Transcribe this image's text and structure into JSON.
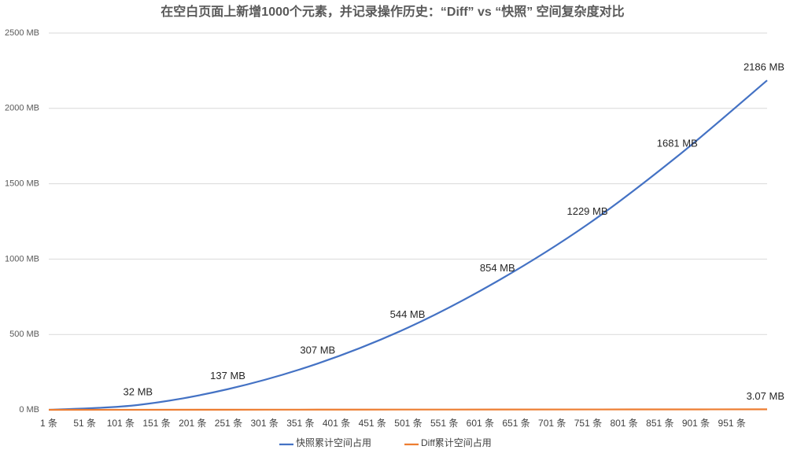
{
  "chart_data": {
    "type": "line",
    "title": "在空白页面上新增1000个元素，并记录操作历史：“Diff” vs “快照” 空间复杂度对比",
    "x": [
      1,
      125,
      250,
      375,
      500,
      625,
      750,
      875,
      1000
    ],
    "xlim": [
      1,
      1000
    ],
    "xticks": [
      {
        "value": 1,
        "label": "1 条"
      },
      {
        "value": 51,
        "label": "51 条"
      },
      {
        "value": 101,
        "label": "101 条"
      },
      {
        "value": 151,
        "label": "151 条"
      },
      {
        "value": 201,
        "label": "201 条"
      },
      {
        "value": 251,
        "label": "251 条"
      },
      {
        "value": 301,
        "label": "301 条"
      },
      {
        "value": 351,
        "label": "351 条"
      },
      {
        "value": 401,
        "label": "401 条"
      },
      {
        "value": 451,
        "label": "451 条"
      },
      {
        "value": 501,
        "label": "501 条"
      },
      {
        "value": 551,
        "label": "551 条"
      },
      {
        "value": 601,
        "label": "601 条"
      },
      {
        "value": 651,
        "label": "651 条"
      },
      {
        "value": 701,
        "label": "701 条"
      },
      {
        "value": 751,
        "label": "751 条"
      },
      {
        "value": 801,
        "label": "801 条"
      },
      {
        "value": 851,
        "label": "851 条"
      },
      {
        "value": 901,
        "label": "901 条"
      },
      {
        "value": 951,
        "label": "951 条"
      }
    ],
    "ylim": [
      0,
      2500
    ],
    "yticks": [
      {
        "value": 0,
        "label": "0 MB"
      },
      {
        "value": 500,
        "label": "500 MB"
      },
      {
        "value": 1000,
        "label": "1000 MB"
      },
      {
        "value": 1500,
        "label": "1500 MB"
      },
      {
        "value": 2000,
        "label": "2000 MB"
      },
      {
        "value": 2500,
        "label": "2500 MB"
      }
    ],
    "grid": true,
    "legend": "bottom",
    "series": [
      {
        "name": "快照累计空间占用",
        "color": "#4472c4",
        "values": [
          0,
          32,
          137,
          307,
          544,
          854,
          1229,
          1681,
          2186
        ],
        "value_labels": [
          null,
          "32 MB",
          "137 MB",
          "307 MB",
          "544 MB",
          "854 MB",
          "1229 MB",
          "1681 MB",
          "2186 MB"
        ]
      },
      {
        "name": "Diff累计空间占用",
        "color": "#ed7d31",
        "values": [
          0,
          0.38,
          0.77,
          1.15,
          1.54,
          1.92,
          2.3,
          2.69,
          3.07
        ],
        "value_labels": [
          null,
          null,
          null,
          null,
          null,
          null,
          null,
          null,
          "3.07 MB"
        ]
      }
    ]
  }
}
